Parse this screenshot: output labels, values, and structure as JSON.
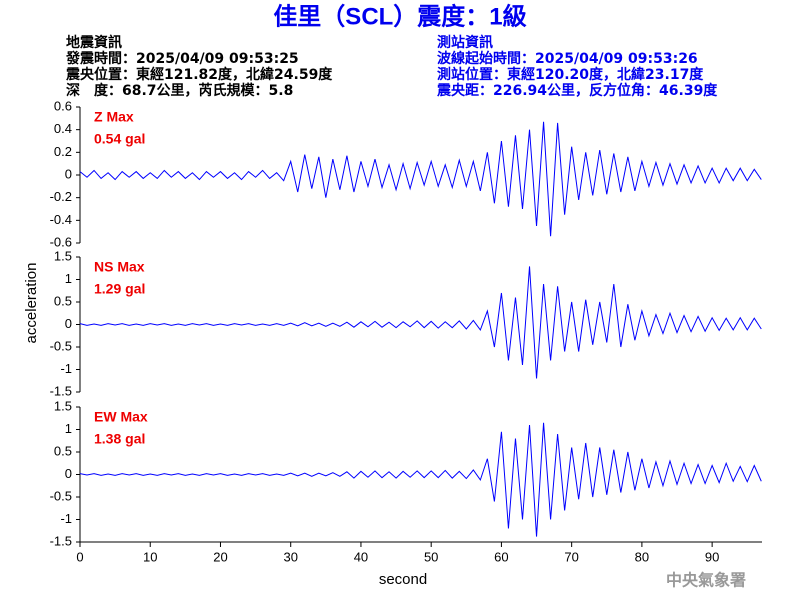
{
  "title": "佳里（SCL）震度：1級",
  "event_info": {
    "heading": "地震資訊",
    "lines": [
      "發震時間：2025/04/09 09:53:25",
      "震央位置：東經121.82度，北緯24.59度",
      "深　度：68.7公里，芮氏規模：5.8"
    ]
  },
  "station_info": {
    "heading": "測站資訊",
    "lines": [
      "波線起始時間：2025/04/09 09:53:26",
      "測站位置：東經120.20度，北緯23.17度",
      "震央距：226.94公里，反方位角：46.39度"
    ]
  },
  "ylabel": "acceleration",
  "watermark": "中央氣象署",
  "chart_data": [
    {
      "type": "line",
      "max_label": "0.54 gal",
      "x": [
        0,
        1,
        2,
        3,
        4,
        5,
        6,
        7,
        8,
        9,
        10,
        11,
        12,
        13,
        14,
        15,
        16,
        17,
        18,
        19,
        20,
        21,
        22,
        23,
        24,
        25,
        26,
        27,
        28,
        29,
        30,
        31,
        32,
        33,
        34,
        35,
        36,
        37,
        38,
        39,
        40,
        41,
        42,
        43,
        44,
        45,
        46,
        47,
        48,
        49,
        50,
        51,
        52,
        53,
        54,
        55,
        56,
        57,
        58,
        59,
        60,
        61,
        62,
        63,
        64,
        65,
        66,
        67,
        68,
        69,
        70,
        71,
        72,
        73,
        74,
        75,
        76,
        77,
        78,
        79,
        80,
        81,
        82,
        83,
        84,
        85,
        86,
        87,
        88,
        89,
        90,
        91,
        92,
        93,
        94,
        95,
        96,
        97
      ],
      "series": [
        {
          "name": "Z Max",
          "color": "#0000ff",
          "values": [
            0.03,
            -0.02,
            0.04,
            -0.03,
            0.02,
            -0.04,
            0.03,
            -0.02,
            0.03,
            -0.03,
            0.02,
            -0.03,
            0.04,
            -0.02,
            0.03,
            -0.03,
            0.02,
            -0.04,
            0.03,
            -0.02,
            0.03,
            -0.03,
            0.02,
            -0.04,
            0.03,
            -0.02,
            0.04,
            -0.03,
            0.02,
            -0.05,
            0.12,
            -0.15,
            0.18,
            -0.12,
            0.16,
            -0.2,
            0.14,
            -0.13,
            0.17,
            -0.15,
            0.12,
            -0.1,
            0.14,
            -0.11,
            0.09,
            -0.13,
            0.1,
            -0.12,
            0.11,
            -0.09,
            0.12,
            -0.1,
            0.09,
            -0.11,
            0.13,
            -0.1,
            0.12,
            -0.14,
            0.2,
            -0.25,
            0.3,
            -0.28,
            0.35,
            -0.3,
            0.4,
            -0.45,
            0.47,
            -0.54,
            0.46,
            -0.35,
            0.25,
            -0.22,
            0.2,
            -0.18,
            0.22,
            -0.17,
            0.19,
            -0.15,
            0.16,
            -0.14,
            0.12,
            -0.1,
            0.11,
            -0.09,
            0.1,
            -0.08,
            0.09,
            -0.07,
            0.08,
            -0.07,
            0.06,
            -0.07,
            0.06,
            -0.05,
            0.06,
            -0.05,
            0.05,
            -0.04
          ]
        }
      ],
      "xlim": [
        0,
        97.1
      ],
      "ylim": [
        -0.6,
        0.6
      ],
      "yticks": [
        0.6,
        0.4,
        0.2,
        0,
        -0.2,
        -0.4,
        -0.6
      ]
    },
    {
      "type": "line",
      "max_label": "1.29 gal",
      "x": [
        0,
        1,
        2,
        3,
        4,
        5,
        6,
        7,
        8,
        9,
        10,
        11,
        12,
        13,
        14,
        15,
        16,
        17,
        18,
        19,
        20,
        21,
        22,
        23,
        24,
        25,
        26,
        27,
        28,
        29,
        30,
        31,
        32,
        33,
        34,
        35,
        36,
        37,
        38,
        39,
        40,
        41,
        42,
        43,
        44,
        45,
        46,
        47,
        48,
        49,
        50,
        51,
        52,
        53,
        54,
        55,
        56,
        57,
        58,
        59,
        60,
        61,
        62,
        63,
        64,
        65,
        66,
        67,
        68,
        69,
        70,
        71,
        72,
        73,
        74,
        75,
        76,
        77,
        78,
        79,
        80,
        81,
        82,
        83,
        84,
        85,
        86,
        87,
        88,
        89,
        90,
        91,
        92,
        93,
        94,
        95,
        96,
        97
      ],
      "series": [
        {
          "name": "NS Max",
          "color": "#0000ff",
          "values": [
            0.02,
            -0.02,
            0.01,
            -0.02,
            0.02,
            -0.01,
            0.02,
            -0.02,
            0.01,
            -0.02,
            0.02,
            -0.01,
            0.02,
            -0.02,
            0.01,
            -0.02,
            0.02,
            -0.01,
            0.02,
            -0.02,
            0.01,
            -0.02,
            0.02,
            -0.01,
            0.02,
            -0.02,
            0.01,
            -0.02,
            0.02,
            -0.02,
            0.03,
            -0.03,
            0.04,
            -0.03,
            0.03,
            -0.04,
            0.03,
            -0.04,
            0.05,
            -0.06,
            0.06,
            -0.05,
            0.07,
            -0.06,
            0.05,
            -0.07,
            0.06,
            -0.05,
            0.08,
            -0.07,
            0.07,
            -0.08,
            0.06,
            -0.07,
            0.08,
            -0.1,
            0.09,
            -0.12,
            0.3,
            -0.5,
            0.7,
            -0.8,
            0.6,
            -0.9,
            1.29,
            -1.2,
            0.9,
            -0.8,
            0.85,
            -0.6,
            0.5,
            -0.6,
            0.55,
            -0.45,
            0.5,
            -0.4,
            0.9,
            -0.5,
            0.45,
            -0.35,
            0.3,
            -0.25,
            0.22,
            -0.2,
            0.25,
            -0.18,
            0.2,
            -0.16,
            0.18,
            -0.15,
            0.15,
            -0.13,
            0.14,
            -0.12,
            0.15,
            -0.12,
            0.14,
            -0.1
          ]
        }
      ],
      "xlim": [
        0,
        97.1
      ],
      "ylim": [
        -1.5,
        1.5
      ],
      "yticks": [
        1.5,
        1,
        0.5,
        0,
        -0.5,
        -1,
        -1.5
      ]
    },
    {
      "type": "line",
      "max_label": "1.38 gal",
      "xlabel": "second",
      "x": [
        0,
        1,
        2,
        3,
        4,
        5,
        6,
        7,
        8,
        9,
        10,
        11,
        12,
        13,
        14,
        15,
        16,
        17,
        18,
        19,
        20,
        21,
        22,
        23,
        24,
        25,
        26,
        27,
        28,
        29,
        30,
        31,
        32,
        33,
        34,
        35,
        36,
        37,
        38,
        39,
        40,
        41,
        42,
        43,
        44,
        45,
        46,
        47,
        48,
        49,
        50,
        51,
        52,
        53,
        54,
        55,
        56,
        57,
        58,
        59,
        60,
        61,
        62,
        63,
        64,
        65,
        66,
        67,
        68,
        69,
        70,
        71,
        72,
        73,
        74,
        75,
        76,
        77,
        78,
        79,
        80,
        81,
        82,
        83,
        84,
        85,
        86,
        87,
        88,
        89,
        90,
        91,
        92,
        93,
        94,
        95,
        96,
        97
      ],
      "series": [
        {
          "name": "EW Max",
          "color": "#0000ff",
          "values": [
            0.02,
            -0.01,
            0.02,
            -0.02,
            0.01,
            -0.02,
            0.02,
            -0.01,
            0.02,
            -0.02,
            0.01,
            -0.02,
            0.02,
            -0.01,
            0.02,
            -0.02,
            0.01,
            -0.02,
            0.02,
            -0.01,
            0.02,
            -0.02,
            0.01,
            -0.02,
            0.02,
            -0.01,
            0.02,
            -0.02,
            0.01,
            -0.02,
            0.03,
            -0.03,
            0.03,
            -0.04,
            0.03,
            -0.03,
            0.04,
            -0.04,
            0.06,
            -0.08,
            0.07,
            -0.06,
            0.08,
            -0.07,
            0.06,
            -0.08,
            0.07,
            -0.06,
            0.08,
            -0.07,
            0.08,
            -0.07,
            0.09,
            -0.08,
            0.07,
            -0.09,
            0.1,
            -0.12,
            0.35,
            -0.6,
            0.95,
            -1.2,
            0.8,
            -1.0,
            1.1,
            -1.38,
            1.15,
            -1.0,
            0.9,
            -0.8,
            0.6,
            -0.55,
            0.7,
            -0.5,
            0.6,
            -0.45,
            0.55,
            -0.4,
            0.5,
            -0.35,
            0.35,
            -0.3,
            0.28,
            -0.25,
            0.3,
            -0.22,
            0.25,
            -0.2,
            0.22,
            -0.2,
            0.2,
            -0.18,
            0.25,
            -0.15,
            0.18,
            -0.16,
            0.2,
            -0.15
          ]
        }
      ],
      "xlim": [
        0,
        97.1
      ],
      "xticks": [
        0,
        10,
        20,
        30,
        40,
        50,
        60,
        70,
        80,
        90
      ],
      "ylim": [
        -1.5,
        1.5
      ],
      "yticks": [
        1.5,
        1,
        0.5,
        0,
        -0.5,
        -1,
        -1.5
      ]
    }
  ]
}
